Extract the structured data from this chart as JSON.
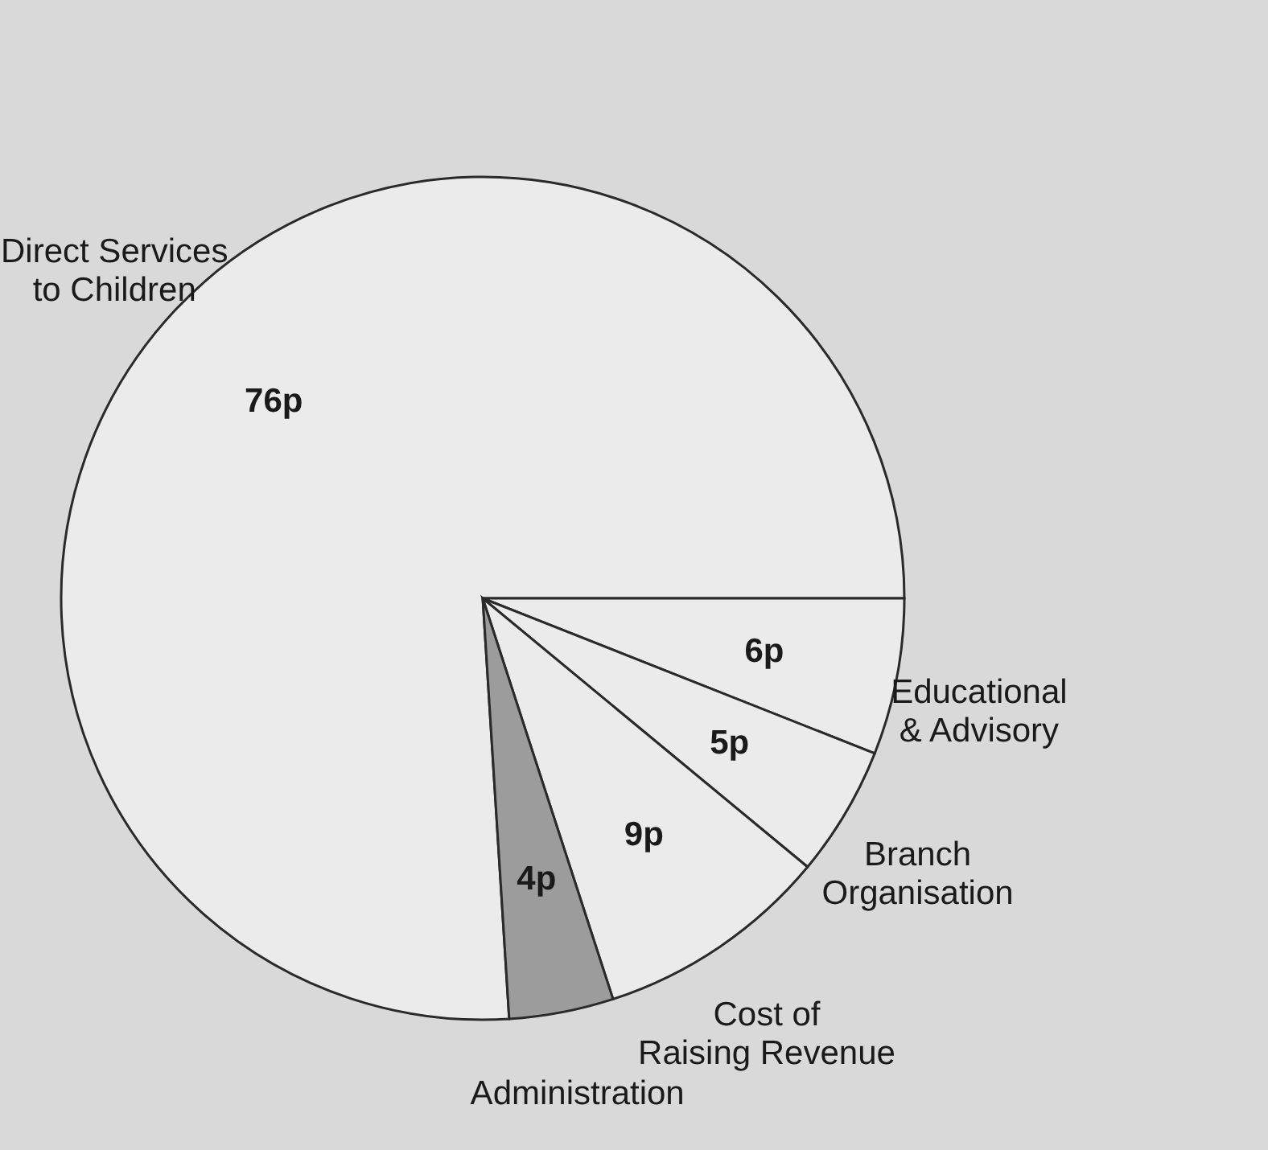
{
  "chart_data": {
    "type": "pie",
    "categories": [
      "Direct Services to Children",
      "Educational & Advisory",
      "Branch Organisation",
      "Cost of Raising Revenue",
      "Administration"
    ],
    "values": [
      76,
      6,
      5,
      9,
      4
    ],
    "colors": [
      "#ebebeb",
      "#ebebeb",
      "#ebebeb",
      "#ebebeb",
      "#9c9c9c"
    ],
    "value_labels": [
      "76p",
      "6p",
      "5p",
      "9p",
      "4p"
    ]
  }
}
